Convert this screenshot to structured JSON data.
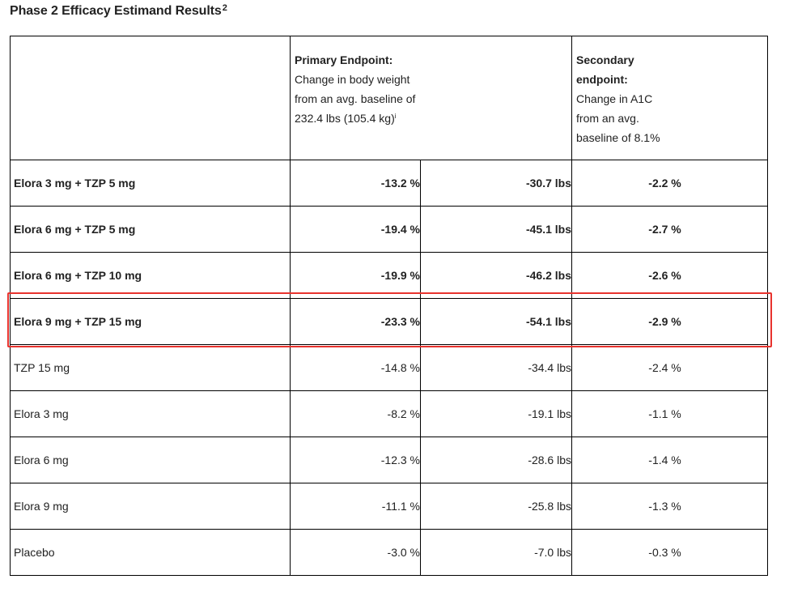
{
  "heading": {
    "title": "Phase 2 Efficacy Estimand Results",
    "superscript": "2"
  },
  "table": {
    "header": {
      "primary": {
        "title": "Primary Endpoint:",
        "lines": [
          "Change in body weight",
          "from an avg. baseline of",
          "232.4 lbs (105.4 kg)"
        ],
        "superscript": "i"
      },
      "secondary": {
        "title_lines": [
          "Secondary",
          "endpoint:"
        ],
        "lines": [
          "Change in A1C",
          "from an avg.",
          "baseline of 8.1%"
        ]
      }
    },
    "rows": [
      {
        "label": "Elora 3 mg + TZP 5 mg",
        "pct": "-13.2 %",
        "lbs": "-30.7 lbs",
        "a1c": "-2.2 %"
      },
      {
        "label": "Elora 6 mg + TZP 5 mg",
        "pct": "-19.4 %",
        "lbs": "-45.1 lbs",
        "a1c": "-2.7 %"
      },
      {
        "label": "Elora 6 mg + TZP 10 mg",
        "pct": "-19.9 %",
        "lbs": "-46.2 lbs",
        "a1c": "-2.6 %"
      },
      {
        "label": "Elora 9 mg + TZP 15 mg",
        "pct": "-23.3 %",
        "lbs": "-54.1 lbs",
        "a1c": "-2.9 %"
      },
      {
        "label": "TZP 15 mg",
        "pct": "-14.8 %",
        "lbs": "-34.4 lbs",
        "a1c": "-2.4 %"
      },
      {
        "label": "Elora 3 mg",
        "pct": "-8.2 %",
        "lbs": "-19.1 lbs",
        "a1c": "-1.1 %"
      },
      {
        "label": "Elora 6 mg",
        "pct": "-12.3 %",
        "lbs": "-28.6 lbs",
        "a1c": "-1.4 %"
      },
      {
        "label": "Elora 9 mg",
        "pct": "-11.1 %",
        "lbs": "-25.8 lbs",
        "a1c": "-1.3 %"
      },
      {
        "label": "Placebo",
        "pct": "-3.0 %",
        "lbs": "-7.0 lbs",
        "a1c": "-0.3 %"
      }
    ]
  },
  "colors": {
    "highlight": "#e8332e",
    "border": "#000000",
    "text": "#222222"
  }
}
